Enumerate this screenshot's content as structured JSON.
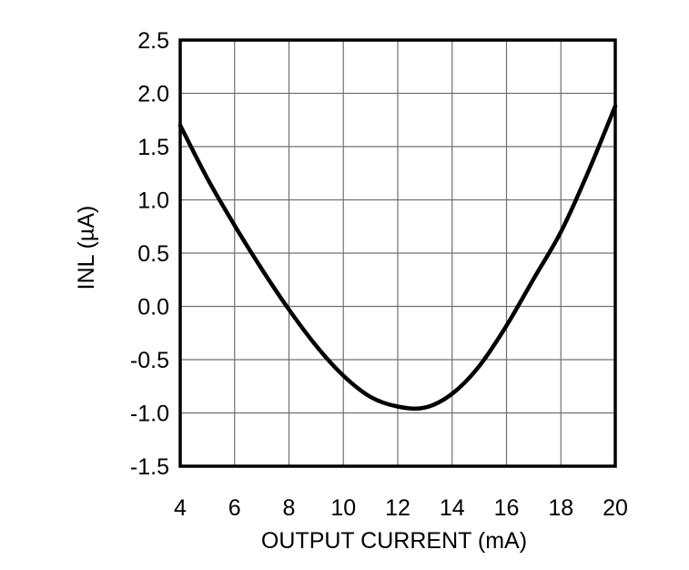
{
  "chart_data": {
    "type": "line",
    "title": "",
    "xlabel": "OUTPUT CURRENT (mA)",
    "ylabel": "INL (µA)",
    "xlim": [
      4,
      20
    ],
    "ylim": [
      -1.5,
      2.5
    ],
    "x_ticks": [
      4,
      6,
      8,
      10,
      12,
      14,
      16,
      18,
      20
    ],
    "x_tick_labels": [
      "4",
      "6",
      "8",
      "10",
      "12",
      "14",
      "16",
      "18",
      "20"
    ],
    "y_ticks": [
      -1.5,
      -1.0,
      -0.5,
      0.0,
      0.5,
      1.0,
      1.5,
      2.0,
      2.5
    ],
    "y_tick_labels": [
      "-1.5",
      "-1.0",
      "-0.5",
      "0.0",
      "0.5",
      "1.0",
      "1.5",
      "2.0",
      "2.5"
    ],
    "grid": true,
    "legend": "none",
    "series": [
      {
        "name": "INL",
        "x": [
          4,
          5,
          6,
          7,
          8,
          9,
          10,
          11,
          12,
          13,
          14,
          15,
          16,
          17,
          18,
          19,
          20
        ],
        "y": [
          1.7,
          1.2,
          0.76,
          0.35,
          -0.03,
          -0.37,
          -0.65,
          -0.85,
          -0.94,
          -0.95,
          -0.82,
          -0.56,
          -0.18,
          0.26,
          0.7,
          1.26,
          1.88
        ],
        "color": "#000000"
      }
    ],
    "annotations": {
      "curve_min": {
        "x": 12.3,
        "y": -0.95
      },
      "curve_start": {
        "x": 4,
        "y": 1.7
      },
      "curve_end": {
        "x": 20,
        "y": 1.88
      }
    },
    "colors": {
      "background": "#ffffff",
      "grid": "#707070",
      "frame": "#000000",
      "curve": "#000000",
      "text": "#000000"
    }
  }
}
